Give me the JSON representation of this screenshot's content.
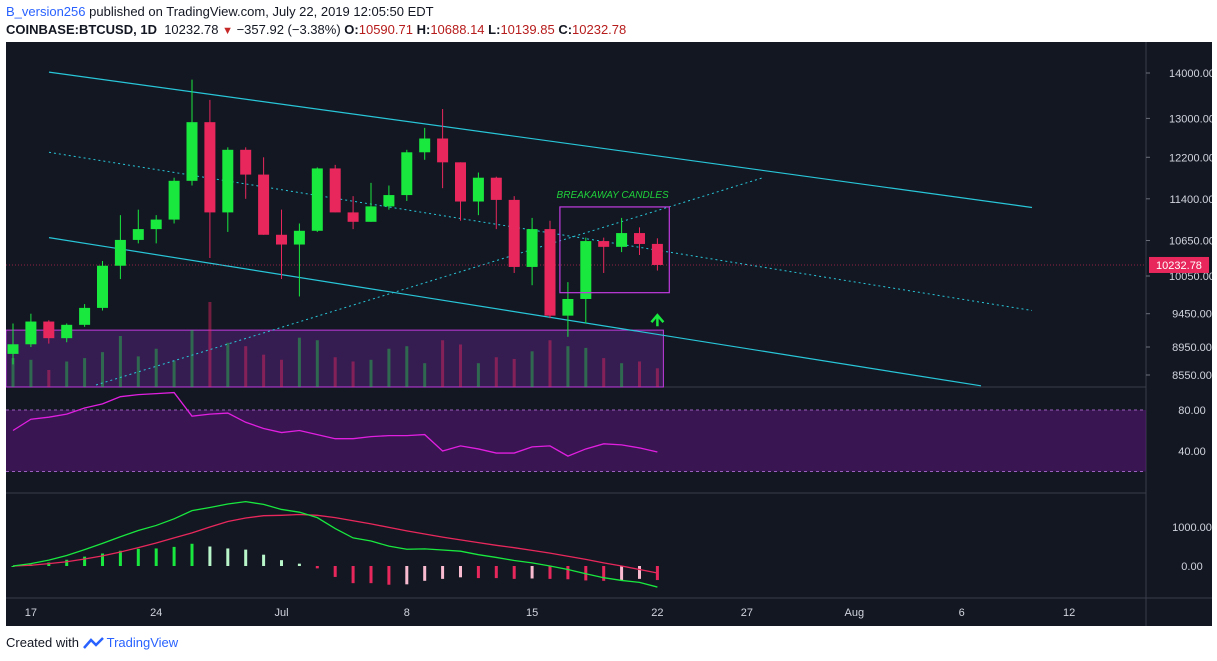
{
  "header": {
    "username": "B_version256",
    "published": "published on TradingView.com, July 22, 2019 12:05:50 EDT",
    "symbol": "COINBASE:BTCUSD, 1D",
    "last": "10232.78",
    "change": "−357.92 (−3.38%)",
    "o_label": "O:",
    "o_val": "10590.71",
    "h_label": "H:",
    "h_val": "10688.14",
    "l_label": "L:",
    "l_val": "10139.85",
    "c_label": "C:",
    "c_val": "10232.78"
  },
  "footer": {
    "created": "Created with",
    "brand": "TradingView"
  },
  "colors": {
    "up": "#19e83f",
    "down": "#e8285c",
    "channel": "#28c6d8",
    "box": "#c23be0",
    "rsi": "#e01fe0",
    "macd": "#19e83f",
    "signal": "#e8285c",
    "price_tag": "#e8285c",
    "annotation": "#1fd13a"
  },
  "chart_data": [
    {
      "type": "candlestick",
      "x_tick_labels": [
        "17",
        "24",
        "Jul",
        "8",
        "15",
        "22",
        "27",
        "Aug",
        "6",
        "12"
      ],
      "y_tick_labels": [
        "14000.00",
        "13000.00",
        "12200.00",
        "11400.00",
        "10650.00",
        "10050.00",
        "9450.00",
        "8950.00",
        "8550.00"
      ],
      "price_tag": "10232.78",
      "annotation": "BREAKAWAY CANDLES",
      "candles": [
        {
          "date": "2019-06-16",
          "o": 8850,
          "h": 9300,
          "l": 8700,
          "c": 8990
        },
        {
          "date": "2019-06-17",
          "o": 8990,
          "h": 9450,
          "l": 8950,
          "c": 9330
        },
        {
          "date": "2019-06-18",
          "o": 9330,
          "h": 9350,
          "l": 9000,
          "c": 9080
        },
        {
          "date": "2019-06-19",
          "o": 9080,
          "h": 9300,
          "l": 9020,
          "c": 9280
        },
        {
          "date": "2019-06-20",
          "o": 9280,
          "h": 9600,
          "l": 9250,
          "c": 9540
        },
        {
          "date": "2019-06-21",
          "o": 9540,
          "h": 10300,
          "l": 9500,
          "c": 10220
        },
        {
          "date": "2019-06-22",
          "o": 10220,
          "h": 11100,
          "l": 10000,
          "c": 10660
        },
        {
          "date": "2019-06-23",
          "o": 10660,
          "h": 11200,
          "l": 10600,
          "c": 10850
        },
        {
          "date": "2019-06-24",
          "o": 10850,
          "h": 11100,
          "l": 10600,
          "c": 11020
        },
        {
          "date": "2019-06-25",
          "o": 11020,
          "h": 11800,
          "l": 10950,
          "c": 11740
        },
        {
          "date": "2019-06-26",
          "o": 11740,
          "h": 13850,
          "l": 11650,
          "c": 12920
        },
        {
          "date": "2019-06-27",
          "o": 12920,
          "h": 13400,
          "l": 10350,
          "c": 11150
        },
        {
          "date": "2019-06-28",
          "o": 11150,
          "h": 12400,
          "l": 10800,
          "c": 12350
        },
        {
          "date": "2019-06-29",
          "o": 12350,
          "h": 12400,
          "l": 11400,
          "c": 11860
        },
        {
          "date": "2019-06-30",
          "o": 11860,
          "h": 12200,
          "l": 10750,
          "c": 10750
        },
        {
          "date": "2019-07-01",
          "o": 10750,
          "h": 11200,
          "l": 10000,
          "c": 10580
        },
        {
          "date": "2019-07-02",
          "o": 10580,
          "h": 10950,
          "l": 9720,
          "c": 10820
        },
        {
          "date": "2019-07-03",
          "o": 10820,
          "h": 12000,
          "l": 10800,
          "c": 11980
        },
        {
          "date": "2019-07-04",
          "o": 11980,
          "h": 12050,
          "l": 11150,
          "c": 11150
        },
        {
          "date": "2019-07-05",
          "o": 11150,
          "h": 11450,
          "l": 10850,
          "c": 10980
        },
        {
          "date": "2019-07-06",
          "o": 10980,
          "h": 11700,
          "l": 10980,
          "c": 11260
        },
        {
          "date": "2019-07-07",
          "o": 11260,
          "h": 11650,
          "l": 11200,
          "c": 11470
        },
        {
          "date": "2019-07-08",
          "o": 11470,
          "h": 12350,
          "l": 11360,
          "c": 12300
        },
        {
          "date": "2019-07-09",
          "o": 12300,
          "h": 12800,
          "l": 12150,
          "c": 12580
        },
        {
          "date": "2019-07-10",
          "o": 12580,
          "h": 13200,
          "l": 11600,
          "c": 12100
        },
        {
          "date": "2019-07-11",
          "o": 12100,
          "h": 12100,
          "l": 11000,
          "c": 11350
        },
        {
          "date": "2019-07-12",
          "o": 11350,
          "h": 11900,
          "l": 11100,
          "c": 11800
        },
        {
          "date": "2019-07-13",
          "o": 11800,
          "h": 11820,
          "l": 10850,
          "c": 11380
        },
        {
          "date": "2019-07-14",
          "o": 11380,
          "h": 11450,
          "l": 10100,
          "c": 10200
        },
        {
          "date": "2019-07-15",
          "o": 10200,
          "h": 11050,
          "l": 9900,
          "c": 10850
        },
        {
          "date": "2019-07-16",
          "o": 10850,
          "h": 11000,
          "l": 9380,
          "c": 9420
        },
        {
          "date": "2019-07-17",
          "o": 9420,
          "h": 9950,
          "l": 9100,
          "c": 9680
        },
        {
          "date": "2019-07-18",
          "o": 9680,
          "h": 10700,
          "l": 9300,
          "c": 10640
        },
        {
          "date": "2019-07-19",
          "o": 10640,
          "h": 10700,
          "l": 10100,
          "c": 10540
        },
        {
          "date": "2019-07-20",
          "o": 10540,
          "h": 11050,
          "l": 10450,
          "c": 10780
        },
        {
          "date": "2019-07-21",
          "o": 10780,
          "h": 10880,
          "l": 10400,
          "c": 10590
        },
        {
          "date": "2019-07-22",
          "o": 10590.71,
          "h": 10688.14,
          "l": 10139.85,
          "c": 10232.78
        }
      ],
      "volume_profile": [
        34,
        32,
        20,
        30,
        34,
        41,
        60,
        36,
        45,
        31,
        67,
        100,
        52,
        48,
        38,
        32,
        58,
        55,
        35,
        30,
        32,
        45,
        48,
        28,
        55,
        50,
        28,
        35,
        33,
        42,
        55,
        48,
        46,
        34,
        28,
        30,
        22
      ]
    },
    {
      "type": "line",
      "name": "RSI",
      "y_tick_labels": [
        "80.00",
        "40.00"
      ],
      "ylim": [
        20,
        100
      ],
      "band": [
        40,
        80
      ],
      "values": [
        60,
        71,
        73,
        76,
        82,
        86,
        93,
        95,
        96,
        97,
        74,
        76,
        77,
        68,
        62,
        58,
        60,
        56,
        52,
        52,
        54,
        55,
        55,
        56,
        40,
        45,
        42,
        38,
        38,
        44,
        45,
        35,
        42,
        47,
        46,
        43,
        39
      ]
    },
    {
      "type": "bar",
      "name": "MACD",
      "y_tick_labels": [
        "1000.00",
        "0.00"
      ],
      "ylim": [
        -800,
        1900
      ],
      "macd": [
        0,
        60,
        150,
        270,
        420,
        580,
        750,
        910,
        1040,
        1210,
        1420,
        1500,
        1590,
        1650,
        1580,
        1450,
        1380,
        1240,
        960,
        720,
        640,
        510,
        430,
        440,
        410,
        380,
        290,
        220,
        140,
        80,
        0,
        -90,
        -200,
        -300,
        -370,
        -420,
        -540
      ],
      "signal": [
        0,
        20,
        60,
        110,
        180,
        260,
        360,
        470,
        590,
        720,
        850,
        1000,
        1140,
        1230,
        1290,
        1300,
        1320,
        1300,
        1240,
        1160,
        1080,
        990,
        900,
        820,
        740,
        670,
        600,
        530,
        470,
        400,
        330,
        250,
        170,
        80,
        0,
        -90,
        -180
      ],
      "histogram": [
        0,
        40,
        90,
        160,
        240,
        320,
        390,
        440,
        450,
        490,
        570,
        500,
        450,
        420,
        290,
        150,
        60,
        -60,
        -280,
        -440,
        -440,
        -480,
        -470,
        -380,
        -330,
        -290,
        -310,
        -310,
        -330,
        -320,
        -330,
        -340,
        -370,
        -380,
        -370,
        -330,
        -360
      ]
    }
  ]
}
